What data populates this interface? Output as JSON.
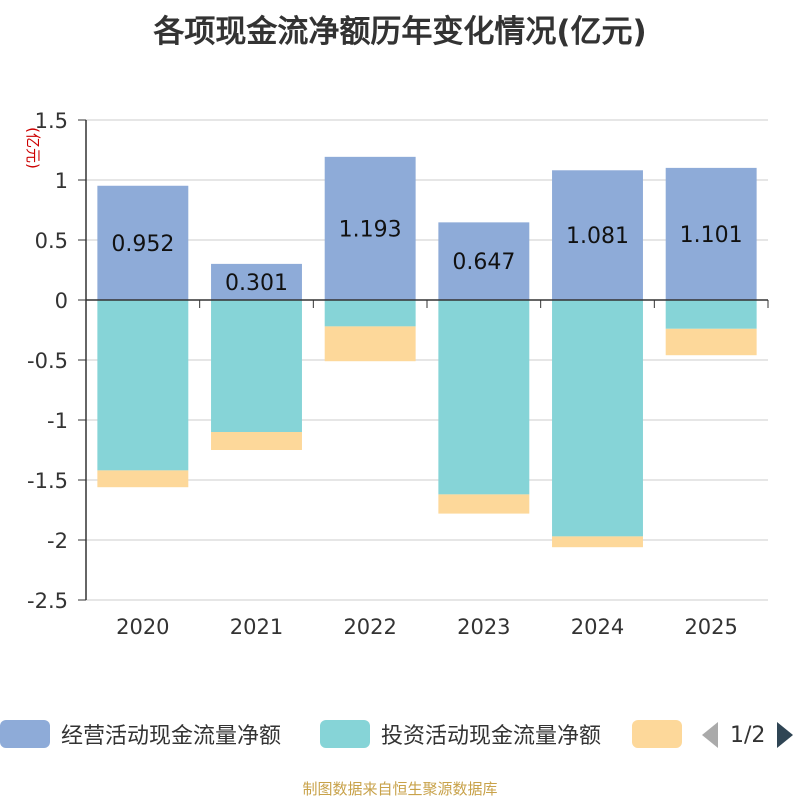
{
  "chart_data": {
    "type": "bar",
    "stacked": true,
    "title": "各项现金流净额历年变化情况(亿元)",
    "ylabel": "(亿元)",
    "xlabel": "",
    "categories": [
      "2020",
      "2021",
      "2022",
      "2023",
      "2024",
      "2025"
    ],
    "ylim": [
      -2.5,
      1.5
    ],
    "yticks": [
      1.5,
      1,
      0.5,
      0,
      -0.5,
      -1,
      -1.5,
      -2,
      -2.5
    ],
    "ytick_labels": [
      "1.5",
      "1",
      "0.5",
      "0",
      "-0.5",
      "-1",
      "-1.5",
      "-2",
      "-2.5"
    ],
    "series": [
      {
        "name": "经营活动现金流量净额",
        "color": "#8eabd8",
        "values": [
          0.952,
          0.301,
          1.193,
          0.647,
          1.081,
          1.101
        ],
        "labels": [
          "0.952",
          "0.301",
          "1.193",
          "0.647",
          "1.081",
          "1.101"
        ]
      },
      {
        "name": "投资活动现金流量净额",
        "color": "#86d4d7",
        "values": [
          -1.42,
          -1.1,
          -0.22,
          -1.62,
          -1.97,
          -0.24
        ]
      },
      {
        "name": "",
        "color": "#fdd89a",
        "values": [
          -0.14,
          -0.15,
          -0.29,
          -0.16,
          -0.09,
          -0.22
        ]
      }
    ]
  },
  "legend": {
    "items": [
      {
        "label": "经营活动现金流量净额",
        "color": "#8eabd8"
      },
      {
        "label": "投资活动现金流量净额",
        "color": "#86d4d7"
      },
      {
        "label": "",
        "color": "#fdd89a"
      }
    ],
    "page_indicator": "1/2"
  },
  "footer": {
    "source": "制图数据来自恒生聚源数据库"
  }
}
